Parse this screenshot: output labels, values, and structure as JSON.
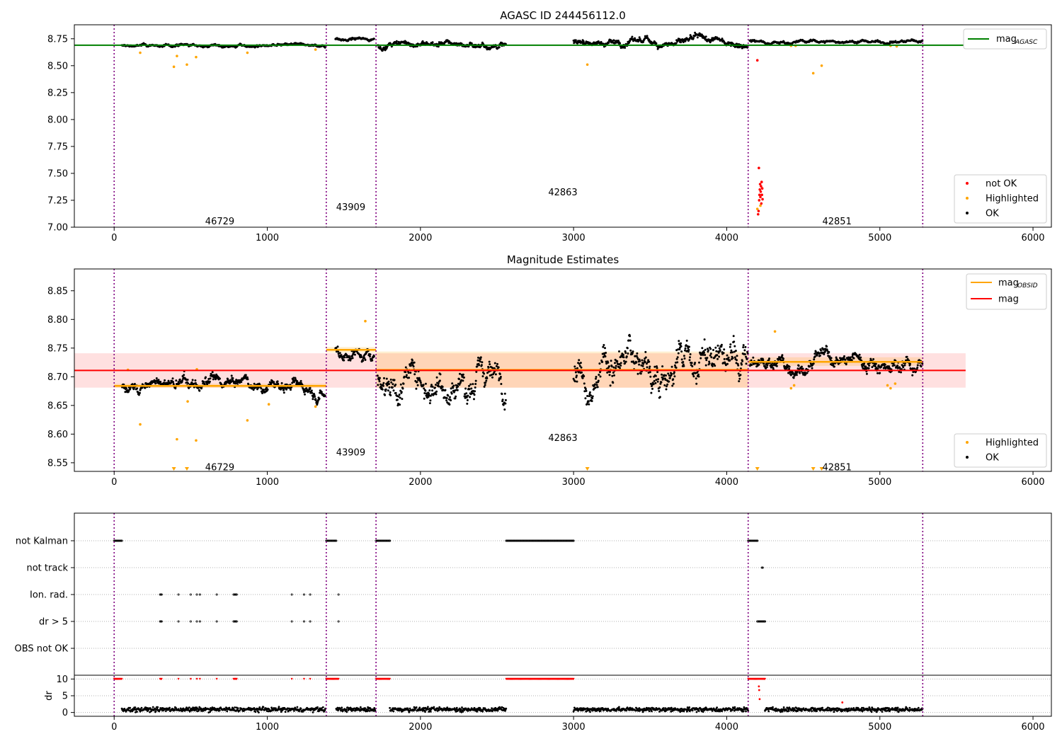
{
  "figure": {
    "title": "AGASC ID 244456112.0"
  },
  "chart_data": [
    {
      "type": "scatter",
      "title": "AGASC ID 244456112.0",
      "xlabel": "",
      "ylabel": "",
      "xlim": [
        -260,
        6120
      ],
      "ylim": [
        7.0,
        8.88
      ],
      "x_ticks": [
        0,
        1000,
        2000,
        3000,
        4000,
        5000,
        6000
      ],
      "y_ticks": [
        7.0,
        7.25,
        7.5,
        7.75,
        8.0,
        8.25,
        8.5,
        8.75
      ],
      "y_tick_labels": [
        "7.00",
        "7.25",
        "7.50",
        "7.75",
        "8.00",
        "8.25",
        "8.50",
        "8.75"
      ],
      "grid": false,
      "obsid_boundaries": [
        0,
        1385,
        1710,
        4140,
        5280
      ],
      "obsid_labels": [
        {
          "text": "46729",
          "x": 690,
          "y": 7.06
        },
        {
          "text": "43909",
          "x": 1545,
          "y": 7.19
        },
        {
          "text": "42863",
          "x": 2930,
          "y": 7.33
        },
        {
          "text": "42851",
          "x": 4720,
          "y": 7.06
        }
      ],
      "mag_agasc": 8.69,
      "mag_agasc_range": [
        0,
        5560
      ],
      "segments": [
        {
          "x0": 50,
          "x1": 1380,
          "y": 8.685,
          "noise": 0.012
        },
        {
          "x0": 1445,
          "x1": 1700,
          "y": 8.748,
          "noise": 0.012
        },
        {
          "x0": 1720,
          "x1": 2560,
          "y": 8.7,
          "noise": 0.025
        },
        {
          "x0": 3000,
          "x1": 4140,
          "y": 8.72,
          "noise": 0.03
        },
        {
          "x0": 4150,
          "x1": 5280,
          "y": 8.725,
          "noise": 0.013
        }
      ],
      "highlighted_points": [
        {
          "x": 170,
          "y": 8.62
        },
        {
          "x": 390,
          "y": 8.49
        },
        {
          "x": 410,
          "y": 8.59
        },
        {
          "x": 475,
          "y": 8.51
        },
        {
          "x": 535,
          "y": 8.58
        },
        {
          "x": 870,
          "y": 8.62
        },
        {
          "x": 1315,
          "y": 8.65
        },
        {
          "x": 3090,
          "y": 8.51
        },
        {
          "x": 4200,
          "y": 7.17
        },
        {
          "x": 4220,
          "y": 7.2
        },
        {
          "x": 4565,
          "y": 8.43
        },
        {
          "x": 4620,
          "y": 8.5
        },
        {
          "x": 4420,
          "y": 8.685
        },
        {
          "x": 4450,
          "y": 8.685
        },
        {
          "x": 5070,
          "y": 8.685
        },
        {
          "x": 5110,
          "y": 8.68
        }
      ],
      "not_ok_points": [
        {
          "x": 4200,
          "y": 8.55
        },
        {
          "x": 4210,
          "y": 7.55
        },
        {
          "x": 4205,
          "y": 7.12
        },
        {
          "x": 4208,
          "y": 7.15
        },
        {
          "x": 4212,
          "y": 7.25
        },
        {
          "x": 4214,
          "y": 7.3
        },
        {
          "x": 4216,
          "y": 7.35
        },
        {
          "x": 4218,
          "y": 7.4
        },
        {
          "x": 4220,
          "y": 7.28
        },
        {
          "x": 4222,
          "y": 7.33
        },
        {
          "x": 4224,
          "y": 7.38
        },
        {
          "x": 4226,
          "y": 7.22
        },
        {
          "x": 4228,
          "y": 7.42
        },
        {
          "x": 4230,
          "y": 7.3
        },
        {
          "x": 4232,
          "y": 7.36
        },
        {
          "x": 4234,
          "y": 7.26
        }
      ],
      "legend_top": [
        {
          "label": "mag",
          "sub": "AGASC",
          "color": "#008000"
        }
      ],
      "legend_bottom": [
        {
          "label": "not OK",
          "color": "#ff0000"
        },
        {
          "label": "Highlighted",
          "color": "#ffa500"
        },
        {
          "label": "OK",
          "color": "#000000"
        }
      ]
    },
    {
      "type": "scatter",
      "title": "Magnitude Estimates",
      "xlabel": "",
      "ylabel": "",
      "xlim": [
        -260,
        6120
      ],
      "ylim": [
        8.535,
        8.888
      ],
      "x_ticks": [
        0,
        1000,
        2000,
        3000,
        4000,
        5000,
        6000
      ],
      "y_ticks": [
        8.55,
        8.6,
        8.65,
        8.7,
        8.75,
        8.8,
        8.85
      ],
      "y_tick_labels": [
        "8.55",
        "8.60",
        "8.65",
        "8.70",
        "8.75",
        "8.80",
        "8.85"
      ],
      "grid": false,
      "obsid_boundaries": [
        0,
        1385,
        1710,
        4140,
        5280
      ],
      "obsid_labels": [
        {
          "text": "46729",
          "x": 690,
          "y": 8.543
        },
        {
          "text": "43909",
          "x": 1545,
          "y": 8.569
        },
        {
          "text": "42863",
          "x": 2930,
          "y": 8.594
        },
        {
          "text": "42851",
          "x": 4720,
          "y": 8.543
        }
      ],
      "mag": 8.711,
      "mag_range": [
        0,
        5560
      ],
      "mag_band": [
        8.681,
        8.741
      ],
      "mag_obsid": [
        {
          "x0": 0,
          "x1": 1385,
          "y": 8.684,
          "band": [
            8.681,
            8.688
          ]
        },
        {
          "x0": 1385,
          "x1": 1710,
          "y": 8.747,
          "band": [
            8.742,
            8.752
          ]
        },
        {
          "x0": 1710,
          "x1": 4140,
          "y": 8.712,
          "band": [
            8.681,
            8.744
          ]
        },
        {
          "x0": 4140,
          "x1": 5280,
          "y": 8.726,
          "band": [
            8.719,
            8.734
          ]
        }
      ],
      "segments": [
        {
          "x0": 50,
          "x1": 1380,
          "y": 8.685,
          "noise": 0.01
        },
        {
          "x0": 1445,
          "x1": 1700,
          "y": 8.745,
          "noise": 0.012
        },
        {
          "x0": 1720,
          "x1": 2560,
          "y": 8.7,
          "noise": 0.025
        },
        {
          "x0": 3000,
          "x1": 4140,
          "y": 8.72,
          "noise": 0.03
        },
        {
          "x0": 4150,
          "x1": 5280,
          "y": 8.726,
          "noise": 0.012
        }
      ],
      "highlighted_points": [
        {
          "x": 170,
          "y": 8.617
        },
        {
          "x": 410,
          "y": 8.591
        },
        {
          "x": 480,
          "y": 8.657
        },
        {
          "x": 535,
          "y": 8.589
        },
        {
          "x": 870,
          "y": 8.624
        },
        {
          "x": 1010,
          "y": 8.652
        },
        {
          "x": 1315,
          "y": 8.648
        },
        {
          "x": 1640,
          "y": 8.797
        },
        {
          "x": 4315,
          "y": 8.779
        },
        {
          "x": 4420,
          "y": 8.68
        },
        {
          "x": 4440,
          "y": 8.685
        },
        {
          "x": 5050,
          "y": 8.685
        },
        {
          "x": 5070,
          "y": 8.68
        },
        {
          "x": 5100,
          "y": 8.688
        },
        {
          "x": 540,
          "y": 8.713
        },
        {
          "x": 90,
          "y": 8.712
        }
      ],
      "offscale_markers": [
        390,
        475,
        3090,
        4200,
        4565,
        4620
      ],
      "legend_top": [
        {
          "label": "mag",
          "sub": "OBSID",
          "color": "#ffa500"
        },
        {
          "label": "mag",
          "sub": "",
          "color": "#ff0000"
        }
      ],
      "legend_bottom": [
        {
          "label": "Highlighted",
          "color": "#ffa500"
        },
        {
          "label": "OK",
          "color": "#000000"
        }
      ]
    },
    {
      "type": "scatter",
      "title": "",
      "xlabel": "",
      "ylabel": "",
      "xlim": [
        -260,
        6120
      ],
      "grid": true,
      "obsid_boundaries": [
        0,
        1385,
        1710,
        4140,
        5280
      ],
      "flag_rows": [
        "not Kalman",
        "not track",
        "Ion. rad.",
        "dr > 5",
        "OBS not OK"
      ],
      "flags": {
        "not Kalman": [
          [
            0,
            50
          ],
          [
            1385,
            1450
          ],
          [
            1710,
            1800
          ],
          [
            2560,
            3000
          ],
          [
            4140,
            4200
          ]
        ],
        "not track": [
          [
            4230,
            4235
          ]
        ],
        "Ion. rad.": [
          [
            300,
            310
          ],
          [
            420,
            420
          ],
          [
            500,
            500
          ],
          [
            540,
            540
          ],
          [
            560,
            560
          ],
          [
            670,
            670
          ],
          [
            780,
            800
          ],
          [
            1160,
            1160
          ],
          [
            1240,
            1240
          ],
          [
            1280,
            1280
          ],
          [
            1465,
            1465
          ]
        ],
        "dr > 5": [
          [
            300,
            310
          ],
          [
            420,
            420
          ],
          [
            500,
            500
          ],
          [
            540,
            540
          ],
          [
            560,
            560
          ],
          [
            670,
            670
          ],
          [
            780,
            800
          ],
          [
            1160,
            1160
          ],
          [
            1240,
            1240
          ],
          [
            1280,
            1280
          ],
          [
            1465,
            1465
          ],
          [
            4200,
            4250
          ]
        ],
        "OBS not OK": []
      },
      "dr_ylabel": "dr",
      "dr_ylim": [
        -0.5,
        10.5
      ],
      "dr_ticks": [
        0,
        5,
        10
      ],
      "dr_tick_labels": [
        "0",
        "5",
        "10"
      ],
      "dr_capped_red": [
        [
          0,
          50
        ],
        [
          300,
          310
        ],
        [
          420,
          420
        ],
        [
          500,
          500
        ],
        [
          540,
          540
        ],
        [
          560,
          560
        ],
        [
          670,
          670
        ],
        [
          780,
          800
        ],
        [
          1160,
          1160
        ],
        [
          1240,
          1240
        ],
        [
          1280,
          1280
        ],
        [
          1385,
          1465
        ],
        [
          1710,
          1800
        ],
        [
          2560,
          3000
        ],
        [
          4140,
          4250
        ]
      ],
      "dr_extra_red": [
        {
          "x": 4210,
          "y": 7.8
        },
        {
          "x": 4212,
          "y": 6.7
        },
        {
          "x": 4215,
          "y": 4.0
        },
        {
          "x": 4755,
          "y": 3.0
        }
      ],
      "dr_segments": [
        [
          50,
          1380
        ],
        [
          1450,
          1705
        ],
        [
          1800,
          2560
        ],
        [
          3000,
          4140
        ],
        [
          4250,
          5280
        ]
      ]
    }
  ]
}
